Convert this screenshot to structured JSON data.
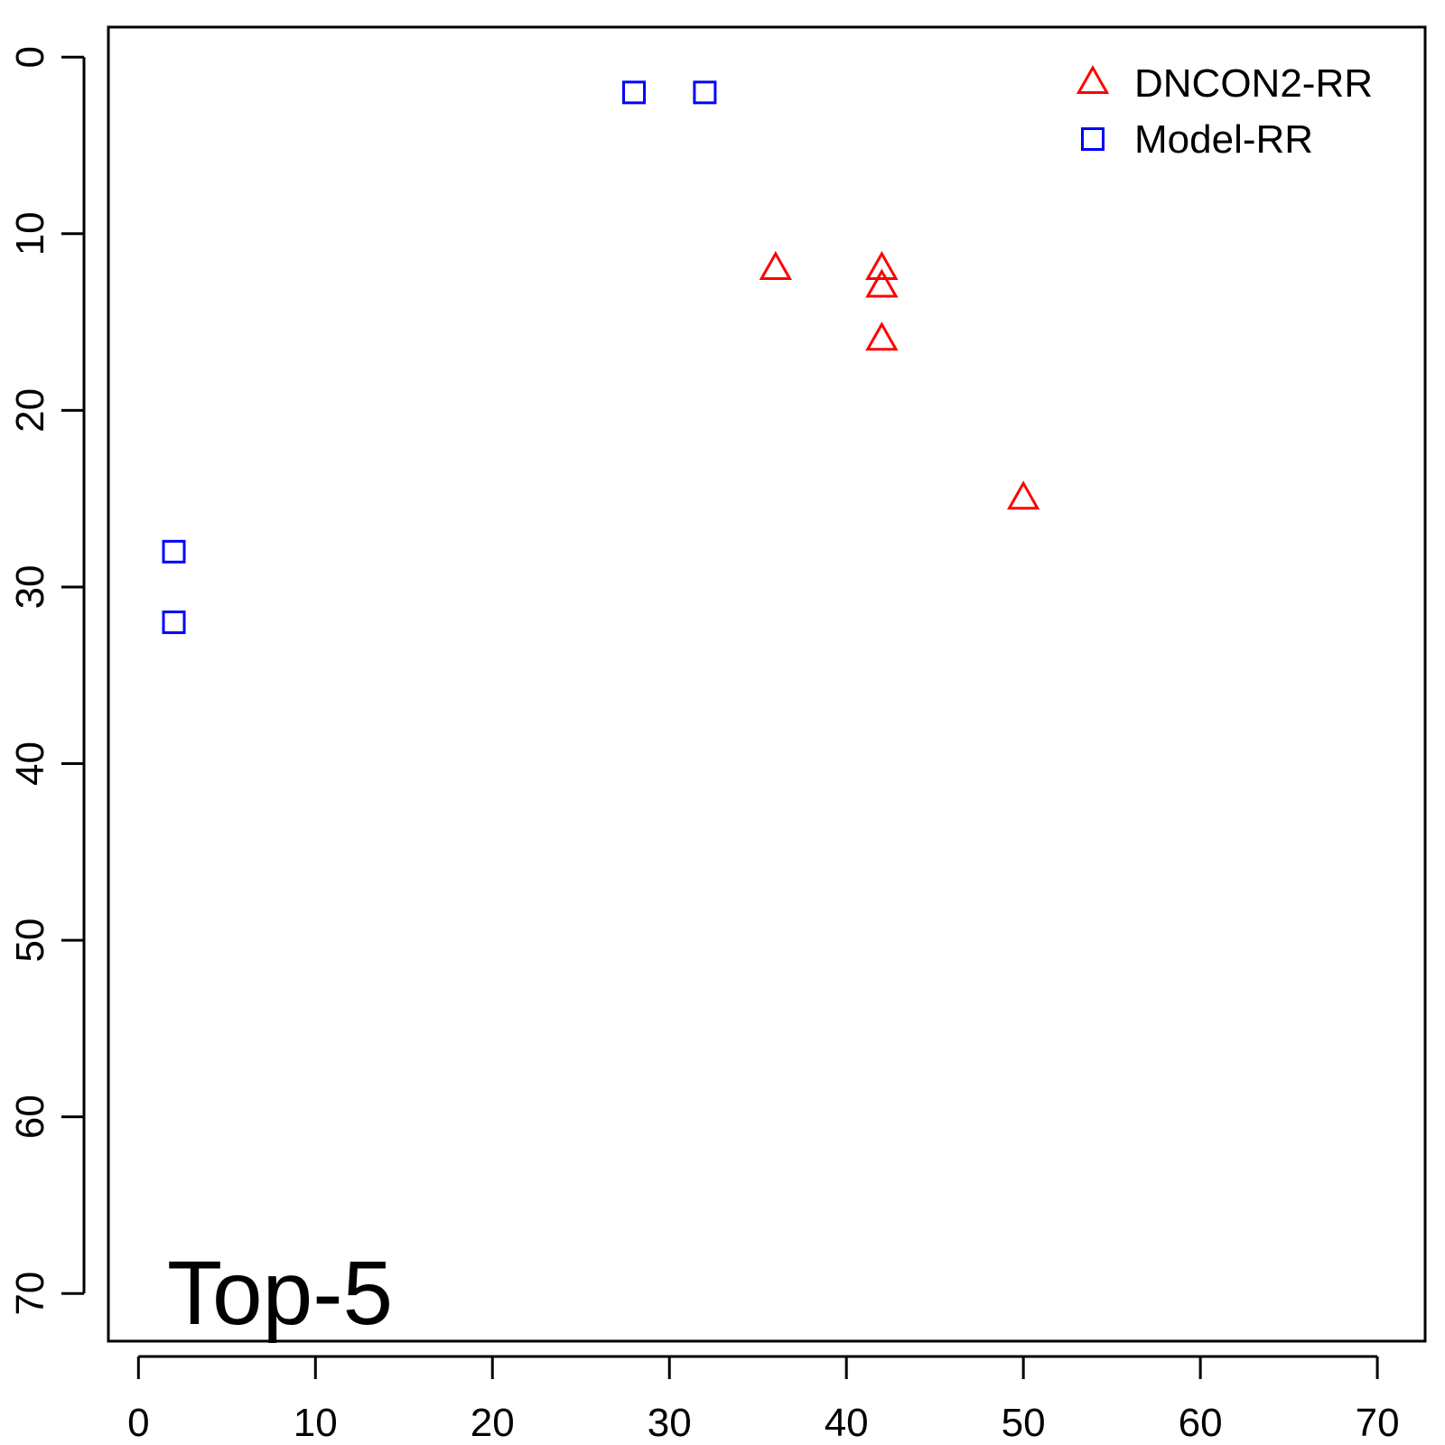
{
  "chart_data": {
    "type": "scatter",
    "title": "",
    "xlabel": "",
    "ylabel": "",
    "annotation": "Top-5",
    "xlim": [
      -1.7,
      72.7
    ],
    "ylim": [
      72.7,
      -1.7
    ],
    "y_reversed": true,
    "xticks": [
      0,
      10,
      20,
      30,
      40,
      50,
      60,
      70
    ],
    "yticks": [
      0,
      10,
      20,
      30,
      40,
      50,
      60,
      70
    ],
    "legend_position": "top-right",
    "grid": false,
    "series": [
      {
        "name": "DNCON2-RR",
        "marker": "triangle",
        "color": "#ff0000",
        "points": [
          [
            36,
            12
          ],
          [
            42,
            12
          ],
          [
            42,
            13
          ],
          [
            42,
            16
          ],
          [
            50,
            25
          ]
        ]
      },
      {
        "name": "Model-RR",
        "marker": "square",
        "color": "#0000ff",
        "points": [
          [
            2,
            28
          ],
          [
            2,
            32
          ],
          [
            28,
            2
          ],
          [
            32,
            2
          ]
        ]
      }
    ]
  }
}
